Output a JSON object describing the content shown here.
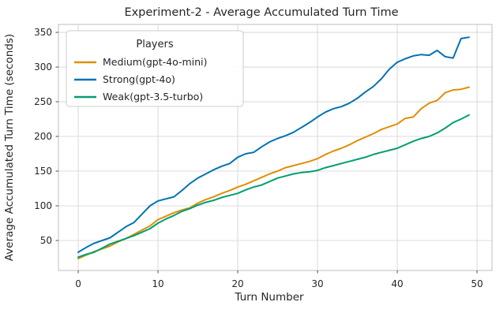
{
  "chart_data": {
    "type": "line",
    "title": "Experiment-2 - Average Accumulated Turn Time",
    "xlabel": "Turn Number",
    "ylabel": "Average Accumulated Turn Time (seconds)",
    "xlim": [
      -2.48,
      51.88
    ],
    "ylim": [
      6.8,
      361.4
    ],
    "x_ticks": [
      0,
      10,
      20,
      30,
      40,
      50
    ],
    "y_ticks": [
      50,
      100,
      150,
      200,
      250,
      300,
      350
    ],
    "grid": true,
    "legend": {
      "title": "Players",
      "position": "upper left"
    },
    "x": [
      0,
      1,
      2,
      3,
      4,
      5,
      6,
      7,
      8,
      9,
      10,
      11,
      12,
      13,
      14,
      15,
      16,
      17,
      18,
      19,
      20,
      21,
      22,
      23,
      24,
      25,
      26,
      27,
      28,
      29,
      30,
      31,
      32,
      33,
      34,
      35,
      36,
      37,
      38,
      39,
      40,
      41,
      42,
      43,
      44,
      45,
      46,
      47,
      48,
      49
    ],
    "series": [
      {
        "name": "Medium(gpt-4o-mini)",
        "color": "#de8f05",
        "values": [
          24,
          29,
          34,
          38,
          42,
          48,
          53,
          59,
          65,
          71,
          80,
          85,
          90,
          94,
          97,
          104,
          109,
          113,
          118,
          122,
          127,
          131,
          136,
          141,
          146,
          150,
          155,
          158,
          161,
          164,
          168,
          174,
          179,
          183,
          188,
          194,
          199,
          204,
          210,
          214,
          218,
          226,
          228,
          240,
          248,
          252,
          263,
          267,
          268,
          271
        ]
      },
      {
        "name": "Strong(gpt-4o)",
        "color": "#0173b2",
        "values": [
          33,
          40,
          46,
          50,
          54,
          62,
          70,
          76,
          88,
          100,
          107,
          110,
          113,
          122,
          132,
          140,
          146,
          152,
          157,
          161,
          170,
          175,
          177,
          185,
          192,
          197,
          201,
          206,
          213,
          220,
          228,
          235,
          240,
          243,
          248,
          255,
          264,
          272,
          283,
          297,
          307,
          312,
          316,
          318,
          317,
          324,
          315,
          313,
          341,
          343
        ]
      },
      {
        "name": "Weak(gpt-3.5-turbo)",
        "color": "#029e73",
        "values": [
          26,
          30,
          33,
          39,
          45,
          49,
          53,
          57,
          62,
          67,
          75,
          81,
          86,
          92,
          96,
          101,
          105,
          108,
          112,
          115,
          118,
          123,
          127,
          130,
          135,
          140,
          143,
          146,
          148,
          149,
          151,
          155,
          158,
          161,
          164,
          167,
          170,
          174,
          177,
          180,
          183,
          188,
          193,
          197,
          200,
          205,
          212,
          220,
          225,
          231
        ]
      }
    ],
    "colors": {
      "grid": "#dcdcdc",
      "spine": "#c9c9c9",
      "tick": "#4a4a4a",
      "text": "#262626",
      "background": "#ffffff",
      "legend_border": "#cccccc"
    }
  }
}
